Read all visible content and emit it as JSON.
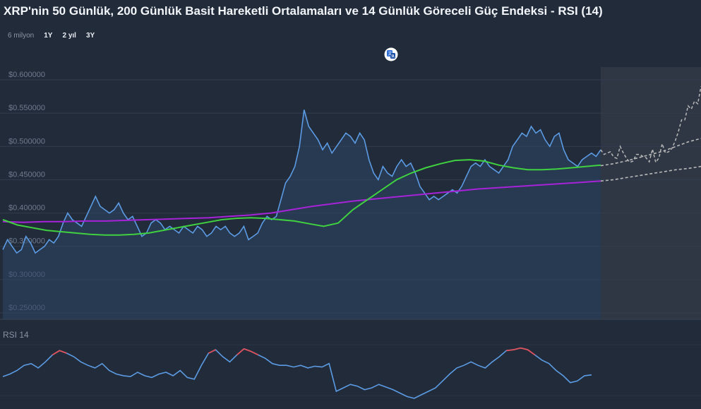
{
  "title": "XRP'nin 50 Günlük, 200 Günlük Basit Hareketli Ortalamaları ve 14 Günlük Göreceli Güç Endeksi - RSI (14)",
  "range_selector": {
    "label": "6 milyon",
    "options": [
      "1Y",
      "2 yıl",
      "3Y"
    ]
  },
  "icons": {
    "translate": "translate-icon"
  },
  "colors": {
    "background": "#222b3a",
    "price": "#5b9be3",
    "price_fill": "#2d4566",
    "forecast": "#b8b8b8",
    "forecast_bg": "#2f3745",
    "sma50": "#3fd13f",
    "sma200": "#a623d8",
    "rsi": "#5b9be3",
    "rsi_overbought": "#e0505a"
  },
  "chart_data": {
    "type": "line",
    "y_ticks": [
      "$0.600000",
      "$0.550000",
      "$0.500000",
      "$0.450000",
      "$0.400000",
      "$0.350000",
      "$0.300000",
      "$0.250000"
    ],
    "ylim": [
      0.25,
      0.6
    ],
    "series": [
      {
        "key": "price",
        "values": [
          0.345,
          0.36,
          0.35,
          0.34,
          0.345,
          0.365,
          0.355,
          0.34,
          0.345,
          0.35,
          0.36,
          0.355,
          0.365,
          0.385,
          0.4,
          0.39,
          0.385,
          0.38,
          0.395,
          0.41,
          0.425,
          0.41,
          0.405,
          0.4,
          0.405,
          0.415,
          0.4,
          0.39,
          0.395,
          0.38,
          0.365,
          0.37,
          0.385,
          0.39,
          0.385,
          0.375,
          0.38,
          0.375,
          0.37,
          0.38,
          0.375,
          0.37,
          0.38,
          0.375,
          0.365,
          0.37,
          0.38,
          0.375,
          0.38,
          0.37,
          0.365,
          0.37,
          0.38,
          0.36,
          0.365,
          0.37,
          0.385,
          0.395,
          0.39,
          0.395,
          0.42,
          0.445,
          0.455,
          0.47,
          0.5,
          0.555,
          0.53,
          0.52,
          0.51,
          0.495,
          0.505,
          0.49,
          0.5,
          0.51,
          0.52,
          0.515,
          0.505,
          0.52,
          0.51,
          0.48,
          0.46,
          0.45,
          0.47,
          0.46,
          0.455,
          0.47,
          0.48,
          0.47,
          0.475,
          0.46,
          0.44,
          0.43,
          0.42,
          0.425,
          0.42,
          0.425,
          0.43,
          0.435,
          0.43,
          0.44,
          0.455,
          0.47,
          0.475,
          0.47,
          0.48,
          0.47,
          0.465,
          0.46,
          0.47,
          0.48,
          0.5,
          0.51,
          0.52,
          0.515,
          0.53,
          0.52,
          0.525,
          0.51,
          0.5,
          0.515,
          0.52,
          0.495,
          0.48,
          0.475,
          0.47,
          0.48,
          0.485,
          0.49,
          0.485,
          0.495
        ]
      },
      {
        "key": "forecast",
        "values": [
          0.495,
          0.488,
          0.49,
          0.492,
          0.484,
          0.482,
          0.5,
          0.49,
          0.482,
          0.476,
          0.478,
          0.488,
          0.488,
          0.485,
          0.483,
          0.477,
          0.496,
          0.476,
          0.483,
          0.504,
          0.49,
          0.492,
          0.497,
          0.508,
          0.522,
          0.54,
          0.54,
          0.561,
          0.556,
          0.568,
          0.564,
          0.59
        ]
      },
      {
        "key": "forecast_sma",
        "values": [
          0.471,
          0.474,
          0.478,
          0.483,
          0.488,
          0.493,
          0.5,
          0.507,
          0.512
        ]
      },
      {
        "key": "forecast_sma200",
        "values": [
          0.448,
          0.45,
          0.453,
          0.456,
          0.459,
          0.462,
          0.465,
          0.467,
          0.47
        ]
      },
      {
        "key": "sma50",
        "values": [
          0.39,
          0.382,
          0.378,
          0.374,
          0.372,
          0.37,
          0.368,
          0.367,
          0.367,
          0.368,
          0.37,
          0.374,
          0.378,
          0.382,
          0.386,
          0.39,
          0.392,
          0.393,
          0.392,
          0.39,
          0.388,
          0.384,
          0.38,
          0.385,
          0.405,
          0.42,
          0.435,
          0.45,
          0.46,
          0.468,
          0.474,
          0.479,
          0.48,
          0.478,
          0.472,
          0.468,
          0.465,
          0.465,
          0.466,
          0.468,
          0.47,
          0.472
        ]
      },
      {
        "key": "sma200",
        "values": [
          0.387,
          0.386,
          0.387,
          0.387,
          0.388,
          0.388,
          0.389,
          0.39,
          0.391,
          0.392,
          0.393,
          0.395,
          0.397,
          0.4,
          0.405,
          0.41,
          0.414,
          0.418,
          0.421,
          0.424,
          0.427,
          0.43,
          0.433,
          0.436,
          0.438,
          0.44,
          0.442,
          0.444,
          0.446,
          0.448
        ]
      },
      {
        "key": "rsi",
        "values": [
          45,
          48,
          52,
          58,
          60,
          55,
          62,
          70,
          75,
          72,
          68,
          62,
          58,
          55,
          60,
          52,
          48,
          46,
          45,
          50,
          46,
          44,
          48,
          50,
          46,
          52,
          44,
          42,
          58,
          72,
          76,
          68,
          62,
          70,
          77,
          74,
          70,
          66,
          60,
          58,
          58,
          56,
          58,
          55,
          57,
          56,
          60,
          28,
          32,
          36,
          34,
          30,
          32,
          36,
          33,
          30,
          26,
          22,
          20,
          24,
          28,
          32,
          40,
          48,
          55,
          58,
          62,
          58,
          55,
          62,
          68,
          75,
          76,
          78,
          76,
          70,
          64,
          60,
          52,
          46,
          38,
          40,
          46,
          47
        ]
      }
    ]
  },
  "rsi_label": "RSI 14"
}
